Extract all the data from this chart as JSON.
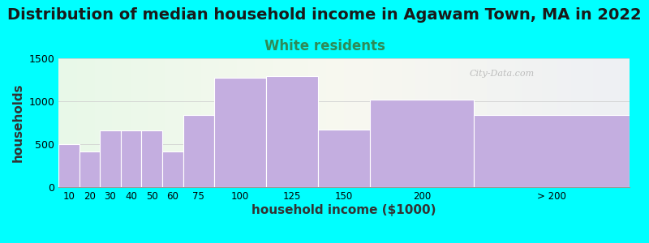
{
  "title": "Distribution of median household income in Agawam Town, MA in 2022",
  "subtitle": "White residents",
  "xlabel": "household income ($1000)",
  "ylabel": "households",
  "bar_labels": [
    "10",
    "20",
    "30",
    "40",
    "50",
    "60",
    "75",
    "100",
    "125",
    "150",
    "200",
    "> 200"
  ],
  "bar_values": [
    500,
    415,
    665,
    665,
    660,
    415,
    840,
    1270,
    1295,
    670,
    1020,
    840
  ],
  "bar_lefts": [
    0,
    10,
    20,
    30,
    40,
    50,
    60,
    75,
    100,
    125,
    150,
    200
  ],
  "bar_widths": [
    10,
    10,
    10,
    10,
    10,
    10,
    15,
    25,
    25,
    25,
    50,
    75
  ],
  "bar_color": "#c4aee0",
  "bar_edgecolor": "#ffffff",
  "background_color": "#00ffff",
  "ylim": [
    0,
    1500
  ],
  "yticks": [
    0,
    500,
    1000,
    1500
  ],
  "title_fontsize": 14,
  "subtitle_fontsize": 12,
  "subtitle_color": "#2e8b57",
  "axis_label_fontsize": 11,
  "watermark_text": "City-Data.com",
  "watermark_color": "#b0b0b0",
  "xtick_positions": [
    5,
    15,
    25,
    35,
    45,
    55,
    67.5,
    87.5,
    112.5,
    137.5,
    175,
    237.5
  ],
  "xtick_labels": [
    "10",
    "20",
    "30",
    "40",
    "50",
    "60",
    "75",
    "100",
    "125",
    "150",
    "200",
    "> 200"
  ]
}
